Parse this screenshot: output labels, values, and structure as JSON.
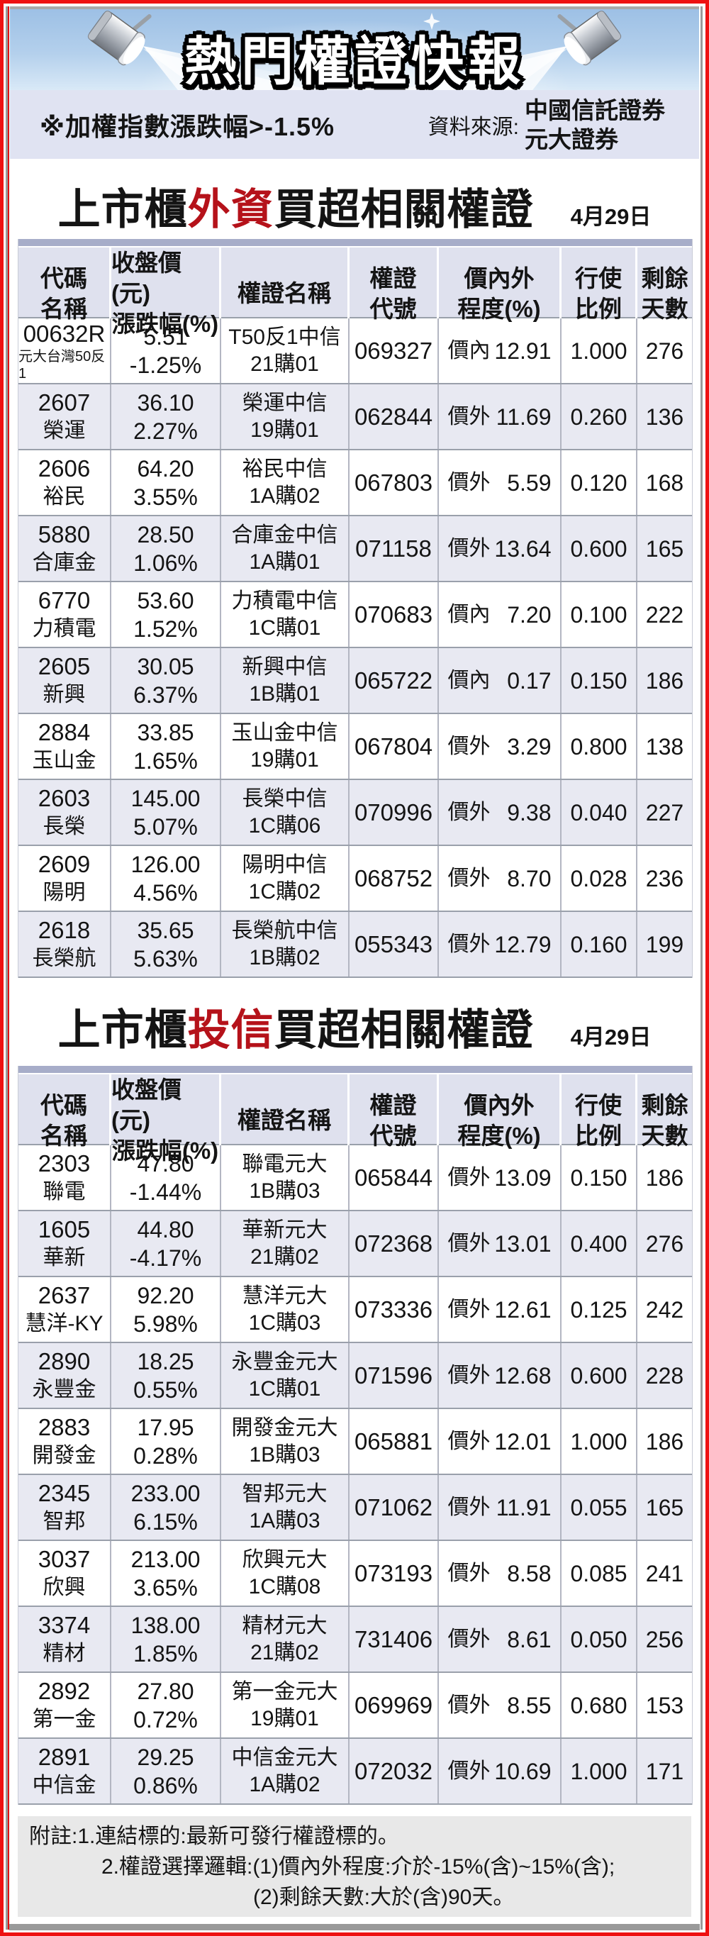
{
  "banner": {
    "title": "熱門權證快報"
  },
  "subheader": {
    "index_note": "※加權指數漲跌幅>-1.5%",
    "source_label": "資料來源:",
    "source_lines": [
      "中國信託證券",
      "元大證券"
    ]
  },
  "colors": {
    "accent_red": "#b5121a",
    "border_red": "#ee1111",
    "header_bar": "#a7adc9",
    "header_bg": "#dfe1ee",
    "row_alt": "#e8e9f2",
    "subheader_bg": "#e0e3f2",
    "banner_sky": "#a5c6e9",
    "note_bg": "#e8e8e8"
  },
  "icons": [
    "spotlight-icon",
    "sparkle-icon"
  ],
  "tables": [
    {
      "title_prefix": "上市櫃",
      "title_highlight": "外資",
      "title_suffix": "買超相關權證",
      "date": "4月29日",
      "headers": [
        [
          "代碼",
          "名稱"
        ],
        [
          "收盤價(元)",
          "漲跌幅(%)"
        ],
        [
          "權證名稱"
        ],
        [
          "權證",
          "代號"
        ],
        [
          "價內外",
          "程度(%)"
        ],
        [
          "行使",
          "比例"
        ],
        [
          "剩餘",
          "天數"
        ]
      ],
      "rows": [
        {
          "code": "00632R",
          "name": "元大台灣50反1",
          "name_small": true,
          "price": "5.51",
          "change": "-1.25%",
          "warrant_name": [
            "T50反1中信",
            "21購01"
          ],
          "warrant_code": "069327",
          "moneyness": "價內",
          "degree": "12.91",
          "ratio": "1.000",
          "days": "276"
        },
        {
          "code": "2607",
          "name": "榮運",
          "price": "36.10",
          "change": "2.27%",
          "warrant_name": [
            "榮運中信",
            "19購01"
          ],
          "warrant_code": "062844",
          "moneyness": "價外",
          "degree": "11.69",
          "ratio": "0.260",
          "days": "136"
        },
        {
          "code": "2606",
          "name": "裕民",
          "price": "64.20",
          "change": "3.55%",
          "warrant_name": [
            "裕民中信",
            "1A購02"
          ],
          "warrant_code": "067803",
          "moneyness": "價外",
          "degree": "5.59",
          "ratio": "0.120",
          "days": "168"
        },
        {
          "code": "5880",
          "name": "合庫金",
          "price": "28.50",
          "change": "1.06%",
          "warrant_name": [
            "合庫金中信",
            "1A購01"
          ],
          "warrant_code": "071158",
          "moneyness": "價外",
          "degree": "13.64",
          "ratio": "0.600",
          "days": "165"
        },
        {
          "code": "6770",
          "name": "力積電",
          "price": "53.60",
          "change": "1.52%",
          "warrant_name": [
            "力積電中信",
            "1C購01"
          ],
          "warrant_code": "070683",
          "moneyness": "價內",
          "degree": "7.20",
          "ratio": "0.100",
          "days": "222"
        },
        {
          "code": "2605",
          "name": "新興",
          "price": "30.05",
          "change": "6.37%",
          "warrant_name": [
            "新興中信",
            "1B購01"
          ],
          "warrant_code": "065722",
          "moneyness": "價內",
          "degree": "0.17",
          "ratio": "0.150",
          "days": "186"
        },
        {
          "code": "2884",
          "name": "玉山金",
          "price": "33.85",
          "change": "1.65%",
          "warrant_name": [
            "玉山金中信",
            "19購01"
          ],
          "warrant_code": "067804",
          "moneyness": "價外",
          "degree": "3.29",
          "ratio": "0.800",
          "days": "138"
        },
        {
          "code": "2603",
          "name": "長榮",
          "price": "145.00",
          "change": "5.07%",
          "warrant_name": [
            "長榮中信",
            "1C購06"
          ],
          "warrant_code": "070996",
          "moneyness": "價外",
          "degree": "9.38",
          "ratio": "0.040",
          "days": "227"
        },
        {
          "code": "2609",
          "name": "陽明",
          "price": "126.00",
          "change": "4.56%",
          "warrant_name": [
            "陽明中信",
            "1C購02"
          ],
          "warrant_code": "068752",
          "moneyness": "價外",
          "degree": "8.70",
          "ratio": "0.028",
          "days": "236"
        },
        {
          "code": "2618",
          "name": "長榮航",
          "price": "35.65",
          "change": "5.63%",
          "warrant_name": [
            "長榮航中信",
            "1B購02"
          ],
          "warrant_code": "055343",
          "moneyness": "價外",
          "degree": "12.79",
          "ratio": "0.160",
          "days": "199"
        }
      ]
    },
    {
      "title_prefix": "上市櫃",
      "title_highlight": "投信",
      "title_suffix": "買超相關權證",
      "date": "4月29日",
      "headers": [
        [
          "代碼",
          "名稱"
        ],
        [
          "收盤價(元)",
          "漲跌幅(%)"
        ],
        [
          "權證名稱"
        ],
        [
          "權證",
          "代號"
        ],
        [
          "價內外",
          "程度(%)"
        ],
        [
          "行使",
          "比例"
        ],
        [
          "剩餘",
          "天數"
        ]
      ],
      "rows": [
        {
          "code": "2303",
          "name": "聯電",
          "price": "47.80",
          "change": "-1.44%",
          "warrant_name": [
            "聯電元大",
            "1B購03"
          ],
          "warrant_code": "065844",
          "moneyness": "價外",
          "degree": "13.09",
          "ratio": "0.150",
          "days": "186"
        },
        {
          "code": "1605",
          "name": "華新",
          "price": "44.80",
          "change": "-4.17%",
          "warrant_name": [
            "華新元大",
            "21購02"
          ],
          "warrant_code": "072368",
          "moneyness": "價外",
          "degree": "13.01",
          "ratio": "0.400",
          "days": "276"
        },
        {
          "code": "2637",
          "name": "慧洋-KY",
          "price": "92.20",
          "change": "5.98%",
          "warrant_name": [
            "慧洋元大",
            "1C購03"
          ],
          "warrant_code": "073336",
          "moneyness": "價外",
          "degree": "12.61",
          "ratio": "0.125",
          "days": "242"
        },
        {
          "code": "2890",
          "name": "永豐金",
          "price": "18.25",
          "change": "0.55%",
          "warrant_name": [
            "永豐金元大",
            "1C購01"
          ],
          "warrant_code": "071596",
          "moneyness": "價外",
          "degree": "12.68",
          "ratio": "0.600",
          "days": "228"
        },
        {
          "code": "2883",
          "name": "開發金",
          "price": "17.95",
          "change": "0.28%",
          "warrant_name": [
            "開發金元大",
            "1B購03"
          ],
          "warrant_code": "065881",
          "moneyness": "價外",
          "degree": "12.01",
          "ratio": "1.000",
          "days": "186"
        },
        {
          "code": "2345",
          "name": "智邦",
          "price": "233.00",
          "change": "6.15%",
          "warrant_name": [
            "智邦元大",
            "1A購03"
          ],
          "warrant_code": "071062",
          "moneyness": "價外",
          "degree": "11.91",
          "ratio": "0.055",
          "days": "165"
        },
        {
          "code": "3037",
          "name": "欣興",
          "price": "213.00",
          "change": "3.65%",
          "warrant_name": [
            "欣興元大",
            "1C購08"
          ],
          "warrant_code": "073193",
          "moneyness": "價外",
          "degree": "8.58",
          "ratio": "0.085",
          "days": "241"
        },
        {
          "code": "3374",
          "name": "精材",
          "price": "138.00",
          "change": "1.85%",
          "warrant_name": [
            "精材元大",
            "21購02"
          ],
          "warrant_code": "731406",
          "moneyness": "價外",
          "degree": "8.61",
          "ratio": "0.050",
          "days": "256"
        },
        {
          "code": "2892",
          "name": "第一金",
          "price": "27.80",
          "change": "0.72%",
          "warrant_name": [
            "第一金元大",
            "19購01"
          ],
          "warrant_code": "069969",
          "moneyness": "價外",
          "degree": "8.55",
          "ratio": "0.680",
          "days": "153"
        },
        {
          "code": "2891",
          "name": "中信金",
          "price": "29.25",
          "change": "0.86%",
          "warrant_name": [
            "中信金元大",
            "1A購02"
          ],
          "warrant_code": "072032",
          "moneyness": "價外",
          "degree": "10.69",
          "ratio": "1.000",
          "days": "171"
        }
      ]
    }
  ],
  "notes": {
    "lines": [
      "附註:1.連結標的:最新可發行權證標的。",
      "2.權證選擇邏輯:(1)價內外程度:介於-15%(含)~15%(含);",
      "(2)剩餘天數:大於(含)90天。"
    ]
  }
}
